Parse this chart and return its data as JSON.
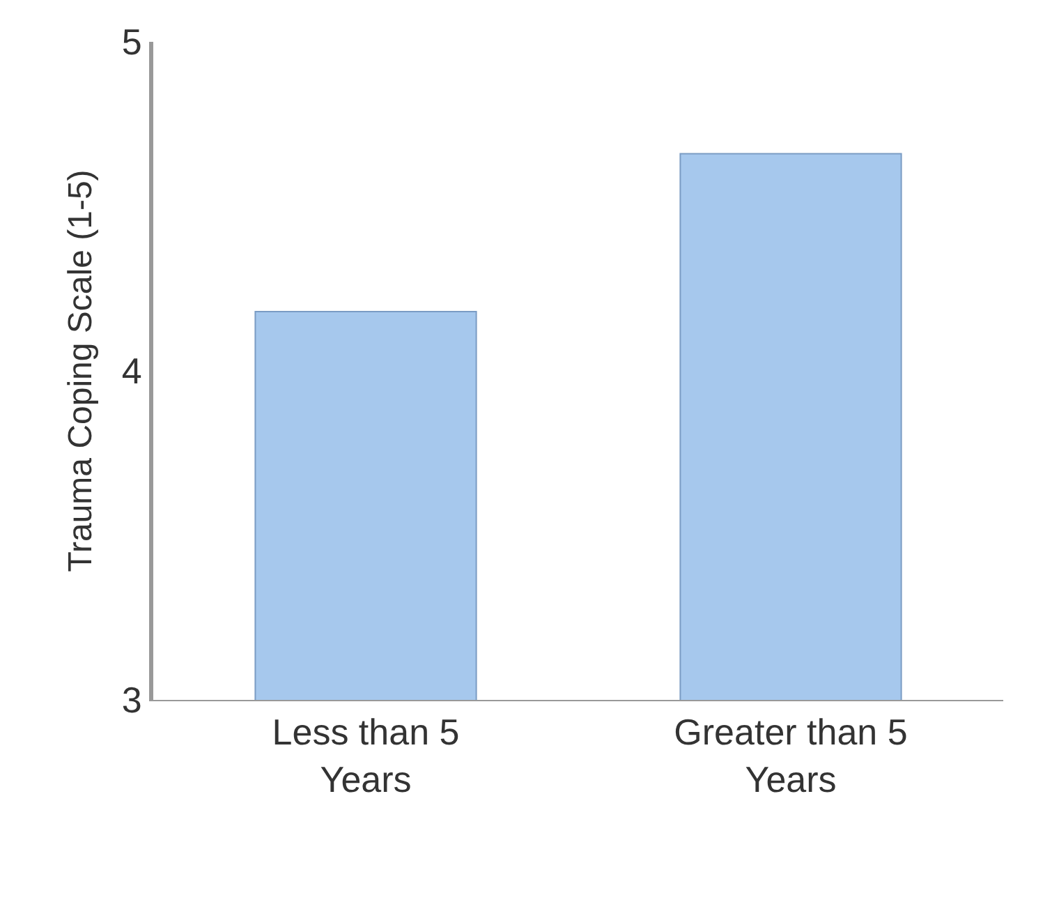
{
  "chart_data": {
    "type": "bar",
    "ylabel": "Trauma Coping Scale (1-5)",
    "categories": [
      "Less than 5 Years",
      "Greater than 5 Years"
    ],
    "values": [
      4.18,
      4.66
    ],
    "color": "#a6c8ed",
    "ylim": [
      3,
      5
    ],
    "yticks": [
      3,
      4,
      5
    ],
    "legend": false
  }
}
